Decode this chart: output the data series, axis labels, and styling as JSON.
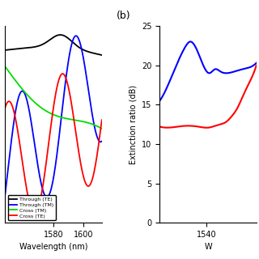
{
  "left_panel": {
    "xlim": [
      1548,
      1612
    ],
    "xlabel": "Wavelength (nm)",
    "xticks": [
      1580,
      1600
    ],
    "legend": [
      "Through (TE)",
      "Through (TM)",
      "Cross (TM)",
      "Cross (TE)"
    ],
    "colors": [
      "#000000",
      "#0000ff",
      "#00dd00",
      "#ff0000"
    ]
  },
  "right_panel": {
    "xlim": [
      1523,
      1558
    ],
    "ylim": [
      0,
      25
    ],
    "xlabel": "W",
    "ylabel": "Extinction ratio (dB)",
    "xticks": [
      1540
    ],
    "yticks": [
      0,
      5,
      10,
      15,
      20,
      25
    ],
    "label": "(b)",
    "colors": [
      "#0000ff",
      "#ff0000"
    ]
  },
  "bg_color": "#ffffff"
}
